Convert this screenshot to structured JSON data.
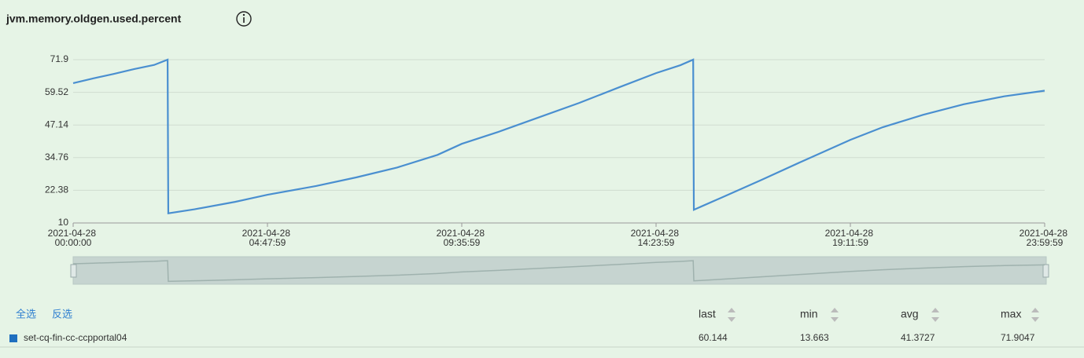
{
  "chart_data": {
    "type": "line",
    "title": "jvm.memory.oldgen.used.percent",
    "x": [
      "2021-04-28 00:00:00",
      "2021-04-28 00:30:00",
      "2021-04-28 01:00:00",
      "2021-04-28 01:30:00",
      "2021-04-28 02:00:00",
      "2021-04-28 02:20:00",
      "2021-04-28 02:21:00",
      "2021-04-28 03:00:00",
      "2021-04-28 04:00:00",
      "2021-04-28 04:48:00",
      "2021-04-28 06:00:00",
      "2021-04-28 07:00:00",
      "2021-04-28 08:00:00",
      "2021-04-28 09:00:00",
      "2021-04-28 09:36:00",
      "2021-04-28 10:30:00",
      "2021-04-28 11:30:00",
      "2021-04-28 12:30:00",
      "2021-04-28 13:30:00",
      "2021-04-28 14:24:00",
      "2021-04-28 15:00:00",
      "2021-04-28 15:19:00",
      "2021-04-28 15:20:00",
      "2021-04-28 16:00:00",
      "2021-04-28 17:00:00",
      "2021-04-28 18:00:00",
      "2021-04-28 19:12:00",
      "2021-04-28 20:00:00",
      "2021-04-28 21:00:00",
      "2021-04-28 22:00:00",
      "2021-04-28 23:00:00",
      "2021-04-28 23:59:59"
    ],
    "series": [
      {
        "name": "set-cq-fin-cc-ccpportal04",
        "color": "#4a8fd0",
        "values": [
          63.0,
          64.8,
          66.5,
          68.3,
          69.9,
          71.9047,
          13.663,
          15.2,
          18.0,
          20.7,
          24.0,
          27.3,
          31.0,
          35.8,
          40.0,
          44.5,
          50.0,
          55.5,
          61.5,
          66.8,
          69.8,
          71.9047,
          15.0,
          19.5,
          26.3,
          33.3,
          41.5,
          46.3,
          51.0,
          55.0,
          58.0,
          60.144
        ]
      }
    ],
    "xlim": [
      "2021-04-28 00:00:00",
      "2021-04-28 23:59:59"
    ],
    "xticks": [
      "2021-04-28 00:00:00",
      "2021-04-28 04:47:59",
      "2021-04-28 09:35:59",
      "2021-04-28 14:23:59",
      "2021-04-28 19:11:59",
      "2021-04-28 23:59:59"
    ],
    "ylim": [
      10,
      71.9
    ],
    "yticks": [
      10,
      22.38,
      34.76,
      47.14,
      59.52,
      71.9
    ],
    "grid": true
  },
  "toolbar": {
    "select_all": "全选",
    "invert": "反选"
  },
  "stats_table": {
    "header": [
      "last",
      "min",
      "avg",
      "max"
    ],
    "rows": [
      {
        "values": [
          60.144,
          13.663,
          41.3727,
          71.9047
        ]
      }
    ]
  }
}
